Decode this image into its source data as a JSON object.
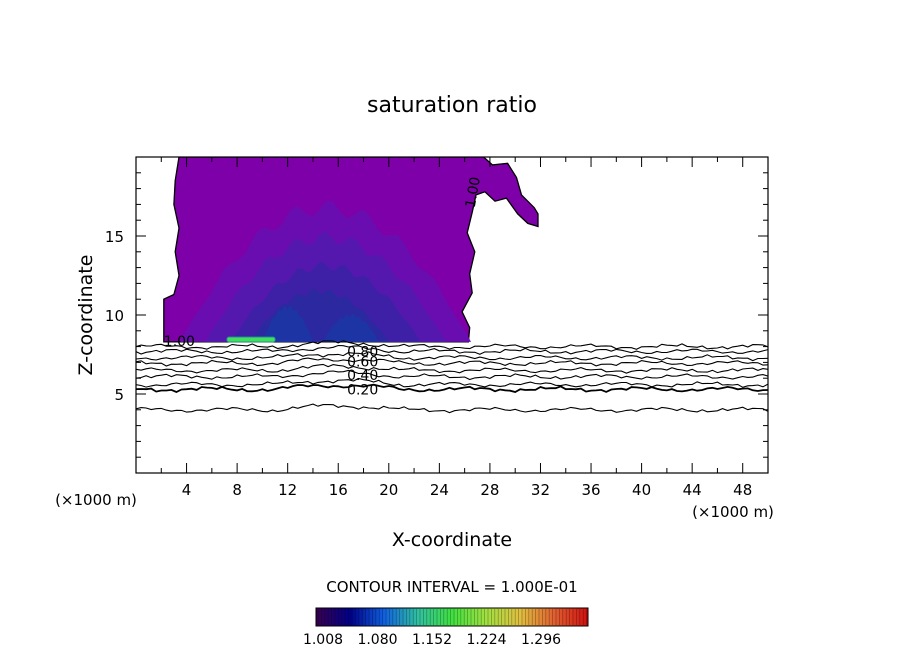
{
  "chart_data": {
    "type": "contour",
    "title": "saturation ratio",
    "xlabel": "X-coordinate",
    "ylabel": "Z-coordinate",
    "x_unit_label": "(×1000 m)",
    "z_unit_label": "(×1000 m)",
    "xlim": [
      0,
      50
    ],
    "ylim": [
      0,
      20
    ],
    "x_ticks": [
      4,
      8,
      12,
      16,
      20,
      24,
      28,
      32,
      36,
      40,
      44,
      48
    ],
    "y_ticks": [
      5,
      10,
      15
    ],
    "contour_interval_text": "CONTOUR INTERVAL = 1.000E-01",
    "contour_labels": [
      "1.00",
      "1.00",
      "0.80",
      "0.60",
      "0.40",
      "0.20"
    ],
    "saturated_region": {
      "boundary_value": 1.0,
      "x_range": [
        2.2,
        31.8
      ],
      "z_range": [
        8.3,
        20
      ],
      "fill_colors": [
        "#7e00a8",
        "#6a0db0",
        "#5418ae",
        "#3e20a6",
        "#2c28a0",
        "#1c34a4"
      ],
      "max_value_region": {
        "x": [
          7.2,
          11.0
        ],
        "z": [
          8.3,
          8.6
        ],
        "color": "#3fe05a"
      }
    },
    "subsaturated_contours": [
      {
        "value": 0.9,
        "z": 8.0
      },
      {
        "value": 0.8,
        "z": 7.7
      },
      {
        "value": 0.7,
        "z": 7.3
      },
      {
        "value": 0.6,
        "z": 6.95
      },
      {
        "value": 0.5,
        "z": 6.5
      },
      {
        "value": 0.4,
        "z": 6.1
      },
      {
        "value": 0.3,
        "z": 5.6
      },
      {
        "value": 0.2,
        "z": 5.3
      },
      {
        "value": 0.1,
        "z": 4.0
      }
    ],
    "colorbar": {
      "tick_labels": [
        "1.008",
        "1.080",
        "1.152",
        "1.224",
        "1.296"
      ],
      "colors": [
        "#3a0050",
        "#000088",
        "#1060e0",
        "#30c0a0",
        "#40e040",
        "#a0e040",
        "#e0c040",
        "#e06030",
        "#d01010"
      ]
    }
  }
}
